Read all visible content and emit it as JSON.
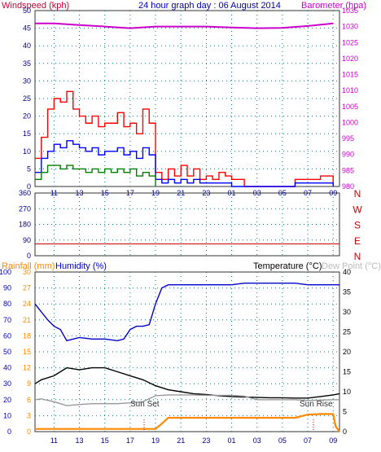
{
  "header": {
    "windspeed_label": "Windspeed (kph)",
    "title": "24 hour graph day : 06 August 2014",
    "barometer_label": "Barometer (hpa)"
  },
  "lower_header": {
    "rainfall_label": "Rainfall (mm)",
    "humidity_label": "Humidity (%)",
    "temperature_label": "Temperature (°C)",
    "dewpoint_label": "Dew Point (°C)"
  },
  "annotations": {
    "sun_set": "Sun Set",
    "sun_rise": "Sun Rise"
  },
  "colors": {
    "windspeed": "#cc0033",
    "barometer": "#cc00cc",
    "gust": "#ff0000",
    "average": "#0000ff",
    "direction": "#cc0000",
    "rain": "#ff8800",
    "humidity": "#0000cc",
    "temperature": "#000000",
    "dewpoint": "#999999",
    "grid": "#008080"
  },
  "chart_data": [
    {
      "type": "line",
      "title": "24 hour graph day : 06 August 2014",
      "x_ticks": [
        "11",
        "13",
        "15",
        "17",
        "19",
        "21",
        "23",
        "01",
        "03",
        "05",
        "07",
        "09"
      ],
      "y_left": {
        "label": "Windspeed (kph)",
        "range": [
          0,
          50
        ],
        "ticks": [
          "0",
          "5",
          "10",
          "15",
          "20",
          "25",
          "30",
          "35",
          "40",
          "45",
          "50"
        ]
      },
      "y_right": {
        "label": "Barometer (hpa)",
        "range": [
          980,
          1035
        ],
        "ticks": [
          "980",
          "985",
          "990",
          "995",
          "1000",
          "1005",
          "1010",
          "1015",
          "1020",
          "1025",
          "1030",
          "1035"
        ]
      },
      "series": [
        {
          "name": "Gust",
          "x": [
            9.5,
            10,
            10.5,
            11,
            11.5,
            12,
            12.5,
            13,
            13.5,
            14,
            14.5,
            15,
            15.5,
            16,
            16.5,
            17,
            17.5,
            18,
            18.5,
            19,
            19.5,
            20,
            20.5,
            21,
            21.5,
            22,
            22.5,
            23,
            23.5,
            24,
            24.5,
            25,
            26,
            27,
            28,
            29,
            30,
            31,
            32,
            33
          ],
          "values": [
            8,
            14,
            22,
            25,
            24,
            27,
            22,
            20,
            18,
            20,
            17,
            18,
            18,
            21,
            17,
            18,
            15,
            22,
            18,
            4,
            2,
            5,
            3,
            6,
            3,
            5,
            2,
            3,
            2,
            4,
            3,
            2,
            0,
            0,
            0,
            0,
            2,
            2,
            3,
            0
          ]
        },
        {
          "name": "Average",
          "x": [
            9.5,
            10,
            10.5,
            11,
            11.5,
            12,
            12.5,
            13,
            13.5,
            14,
            14.5,
            15,
            15.5,
            16,
            16.5,
            17,
            17.5,
            18,
            18.5,
            19,
            19.5,
            20,
            20.5,
            21,
            21.5,
            22,
            22.5,
            23,
            23.5,
            24,
            24.5,
            25,
            26,
            27,
            28,
            29,
            30,
            31,
            32,
            33
          ],
          "values": [
            4,
            8,
            10,
            12,
            11,
            13,
            12,
            11,
            10,
            11,
            9,
            10,
            10,
            11,
            9,
            10,
            8,
            11,
            9,
            2,
            1,
            2,
            1,
            2,
            1,
            2,
            1,
            1,
            1,
            1,
            1,
            0,
            0,
            0,
            0,
            0,
            1,
            1,
            1,
            0
          ]
        },
        {
          "name": "Lull",
          "x": [
            9.5,
            10,
            10.5,
            11,
            11.5,
            12,
            12.5,
            13,
            13.5,
            14,
            14.5,
            15,
            15.5,
            16,
            16.5,
            17,
            17.5,
            18,
            18.5,
            19
          ],
          "values": [
            2,
            4,
            6,
            6,
            5,
            6,
            5,
            5,
            4,
            5,
            4,
            5,
            4,
            5,
            4,
            5,
            3,
            4,
            3,
            0
          ]
        },
        {
          "name": "Barometer",
          "x": [
            9.5,
            11,
            13,
            15,
            17,
            19,
            21,
            23,
            25,
            27,
            29,
            31,
            33
          ],
          "values": [
            1031,
            1031,
            1030.5,
            1030,
            1029.5,
            1030,
            1030,
            1030,
            1029.7,
            1029.5,
            1029.6,
            1030.2,
            1031
          ]
        }
      ]
    },
    {
      "type": "line",
      "y_right": {
        "range": [
          0,
          360
        ],
        "ticks": [
          "0",
          "90",
          "180",
          "270",
          "360"
        ]
      },
      "compass_labels": [
        "N",
        "W",
        "S",
        "E",
        "N"
      ],
      "series": [
        {
          "name": "Wind direction",
          "x": [
            9.5,
            33.5
          ],
          "values": [
            68,
            68
          ]
        }
      ]
    },
    {
      "type": "line",
      "x_ticks": [
        "11",
        "13",
        "15",
        "17",
        "19",
        "21",
        "23",
        "01",
        "03",
        "05",
        "07",
        "09"
      ],
      "y_humidity": {
        "label": "Humidity (%)",
        "range": [
          0,
          100
        ],
        "ticks": [
          "0",
          "10",
          "20",
          "30",
          "40",
          "50",
          "60",
          "70",
          "80",
          "90",
          "100"
        ]
      },
      "y_rainfall": {
        "label": "Rainfall (mm)",
        "range": [
          0,
          30
        ],
        "ticks": [
          "0",
          "3",
          "6",
          "9",
          "12",
          "15",
          "18",
          "21",
          "24",
          "27",
          "30"
        ]
      },
      "y_temperature": {
        "label": "Temperature (°C)",
        "range": [
          0,
          40
        ],
        "ticks": [
          "0",
          "5",
          "10",
          "15",
          "20",
          "25",
          "30",
          "35",
          "40"
        ]
      },
      "series": [
        {
          "name": "Humidity",
          "x": [
            9.5,
            10,
            10.5,
            11,
            11.5,
            12,
            13,
            14,
            15,
            16,
            16.5,
            17,
            17.5,
            18,
            18.5,
            19,
            19.5,
            20,
            21,
            22,
            23,
            24,
            25,
            26,
            27,
            28,
            29,
            30,
            31,
            32,
            33,
            33.5
          ],
          "values": [
            80,
            75,
            70,
            66,
            64,
            57,
            59,
            58,
            58,
            57,
            58,
            64,
            66,
            66,
            67,
            80,
            90,
            92,
            92,
            92,
            92,
            92,
            92,
            93,
            93,
            93,
            93,
            93,
            92,
            92,
            92,
            92
          ]
        },
        {
          "name": "Temperature",
          "x": [
            9.5,
            10,
            11,
            12,
            13,
            14,
            15,
            16,
            17,
            18,
            19,
            20,
            21,
            22,
            23,
            24,
            25,
            26,
            27,
            28,
            29,
            30,
            31,
            32,
            33,
            33.5
          ],
          "values": [
            12,
            13,
            14,
            16,
            15.5,
            16,
            16,
            15,
            14,
            13,
            11.5,
            10.5,
            10,
            9.5,
            9.3,
            9,
            8.8,
            8.7,
            8.6,
            8.5,
            8.5,
            8.4,
            8.4,
            8.8,
            9.2,
            9.5
          ]
        },
        {
          "name": "Dew Point",
          "x": [
            9.5,
            10,
            11,
            12,
            13,
            14,
            15,
            16,
            17,
            18,
            19,
            20,
            21,
            22,
            23,
            24,
            25,
            26,
            27,
            28,
            29,
            30,
            31,
            32,
            33,
            33.5
          ],
          "values": [
            8,
            8.2,
            7.5,
            6.5,
            6.8,
            7,
            7,
            7,
            7.2,
            7.5,
            9,
            9.2,
            9.2,
            9.2,
            9.1,
            9.1,
            9.1,
            8.9,
            8,
            8,
            8,
            8,
            7.8,
            7.9,
            8,
            8
          ]
        },
        {
          "name": "Rainfall",
          "x": [
            9.5,
            19,
            19.5,
            20,
            21,
            22,
            23,
            24,
            25,
            26,
            27,
            28,
            29,
            30,
            31,
            32,
            33,
            33.2,
            33.5
          ],
          "values": [
            0.5,
            0.5,
            1.5,
            2.6,
            2.6,
            2.6,
            2.6,
            2.6,
            2.6,
            2.6,
            2.6,
            2.6,
            2.6,
            2.6,
            3.2,
            3.3,
            3.3,
            1,
            0
          ]
        }
      ]
    }
  ]
}
